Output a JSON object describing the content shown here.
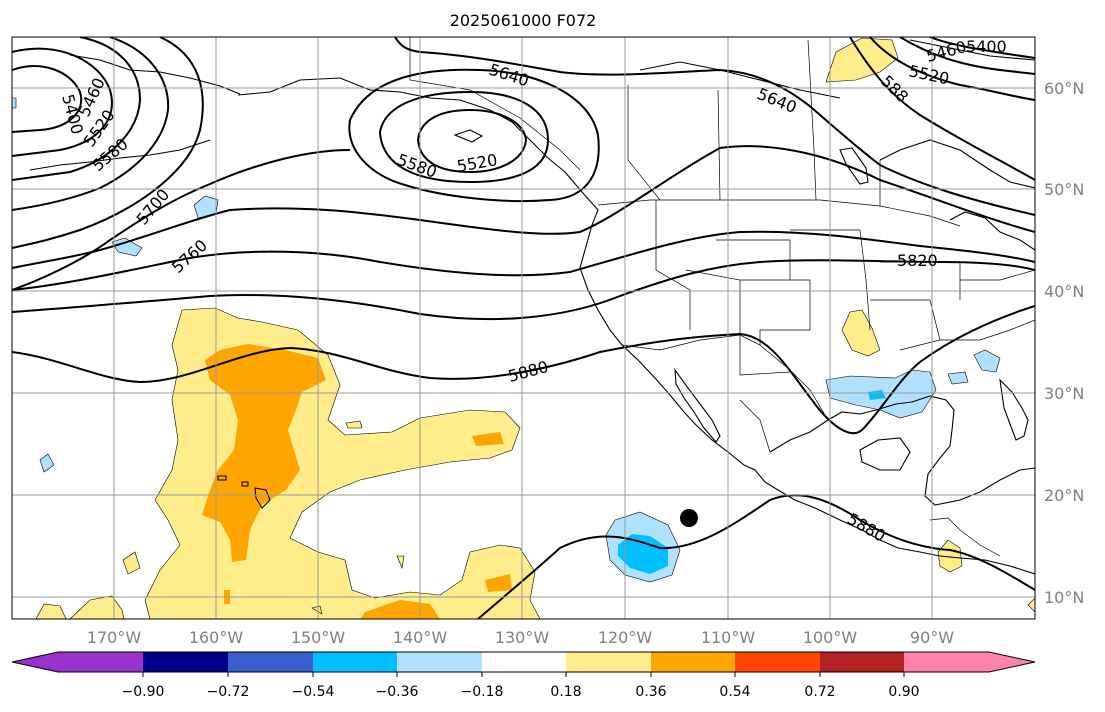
{
  "title": "2025061000 F072",
  "colors": {
    "purple": "#9932cc",
    "navy": "#00008b",
    "royal_blue": "#3a5fcd",
    "deep_sky_blue": "#00bfff",
    "light_blue": "#b0e2ff",
    "white": "#ffffff",
    "light_yellow": "#ffec8b",
    "orange": "#ffa500",
    "orange_red": "#ff4500",
    "firebrick": "#b22222",
    "pink": "#ff82ab"
  },
  "colorbar": {
    "ticks": [
      "−0.90",
      "−0.72",
      "−0.54",
      "−0.36",
      "−0.18",
      "0.18",
      "0.36",
      "0.54",
      "0.72",
      "0.90"
    ],
    "extend": "both"
  },
  "lat_labels": [
    "60°N",
    "50°N",
    "40°N",
    "30°N",
    "20°N",
    "10°N"
  ],
  "lon_labels": [
    "170°W",
    "160°W",
    "150°W",
    "140°W",
    "130°W",
    "120°W",
    "110°W",
    "100°W",
    "90°W"
  ],
  "contour_labels": [
    "5400",
    "5460",
    "5520",
    "5580",
    "5700",
    "5760",
    "5640",
    "5580",
    "5520",
    "5640",
    "5880",
    "5820",
    "5880",
    "5400",
    "5460",
    "5520",
    "588"
  ],
  "storm_marker": "black-dot"
}
